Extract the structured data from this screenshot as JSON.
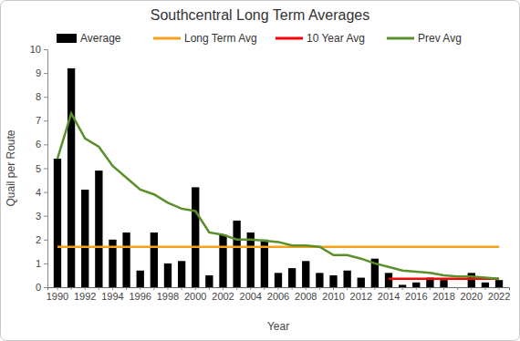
{
  "chart_data": {
    "type": "bar",
    "title": "Southcentral Long Term Averages",
    "x_label": "Year",
    "y_label": "Quail per Route",
    "categories": [
      "1990",
      null,
      "1992",
      null,
      "1994",
      null,
      "1996",
      null,
      "1998",
      null,
      "2000",
      null,
      "2002",
      null,
      "2004",
      null,
      "2006",
      null,
      "2008",
      null,
      "2010",
      null,
      "2012",
      null,
      "2014",
      null,
      "2016",
      null,
      "2018",
      null,
      "2020",
      null,
      "2022"
    ],
    "series": [
      {
        "name": "Average",
        "type": "bar",
        "color": "#000000",
        "values": [
          5.4,
          9.2,
          4.1,
          4.9,
          2.0,
          2.3,
          0.7,
          2.3,
          1.0,
          1.1,
          4.2,
          0.5,
          2.2,
          2.8,
          2.3,
          2.0,
          0.6,
          0.8,
          1.1,
          0.6,
          0.5,
          0.7,
          0.4,
          1.2,
          0.6,
          0.1,
          0.2,
          0.4,
          0.3,
          0.0,
          0.6,
          0.2,
          0.3
        ]
      },
      {
        "name": "Long Term Avg",
        "type": "line",
        "color": "#f7a11a",
        "values": [
          1.7,
          1.7,
          1.7,
          1.7,
          1.7,
          1.7,
          1.7,
          1.7,
          1.7,
          1.7,
          1.7,
          1.7,
          1.7,
          1.7,
          1.7,
          1.7,
          1.7,
          1.7,
          1.7,
          1.7,
          1.7,
          1.7,
          1.7,
          1.7,
          1.7,
          1.7,
          1.7,
          1.7,
          1.7,
          1.7,
          1.7,
          1.7,
          1.7
        ]
      },
      {
        "name": "10 Year Avg",
        "type": "line",
        "color": "#ff0000",
        "values": [
          null,
          null,
          null,
          null,
          null,
          null,
          null,
          null,
          null,
          null,
          null,
          null,
          null,
          null,
          null,
          null,
          null,
          null,
          null,
          null,
          null,
          null,
          null,
          null,
          0.35,
          0.35,
          0.35,
          0.35,
          0.35,
          0.35,
          0.35,
          0.35,
          0.35
        ]
      },
      {
        "name": "Prev Avg",
        "type": "line",
        "color": "#5a8f2c",
        "values": [
          5.4,
          7.3,
          6.25,
          5.9,
          5.1,
          4.6,
          4.1,
          3.9,
          3.55,
          3.3,
          3.2,
          2.3,
          2.2,
          2.0,
          2.0,
          1.95,
          1.9,
          1.75,
          1.75,
          1.7,
          1.35,
          1.35,
          1.2,
          1.0,
          0.85,
          0.7,
          0.65,
          0.6,
          0.5,
          0.45,
          0.45,
          0.4,
          0.35
        ]
      }
    ],
    "ylim": [
      0,
      10
    ],
    "yticks": [
      0,
      1,
      2,
      3,
      4,
      5,
      6,
      7,
      8,
      9,
      10
    ],
    "legend": "top"
  }
}
